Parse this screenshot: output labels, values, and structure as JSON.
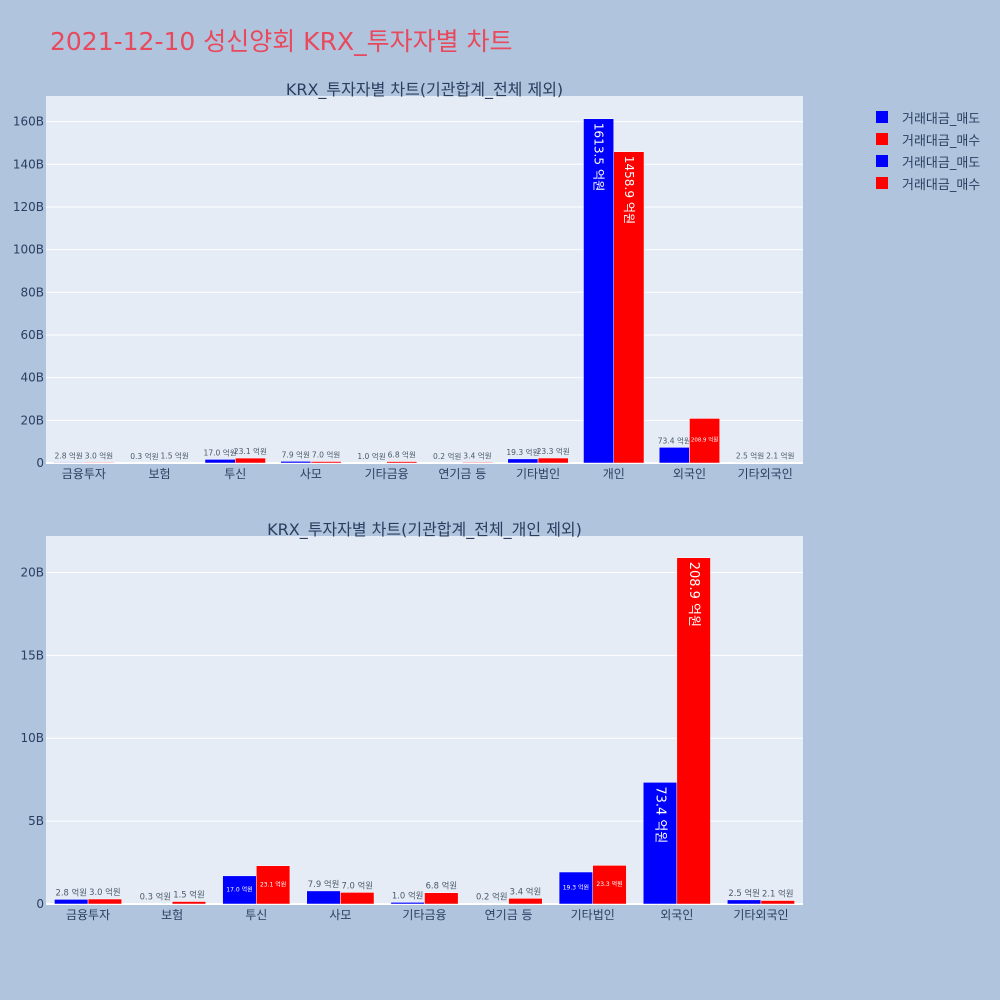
{
  "page": {
    "title": "2021-12-10 성신양회 KRX_투자자별 차트"
  },
  "colors": {
    "sell": "#0000ff",
    "buy": "#ff0000",
    "plot_bg": "#e5ecf6",
    "paper_bg": "#b0c4de"
  },
  "legend": {
    "placement": "right",
    "items": [
      {
        "label": "거래대금_매도",
        "color": "#0000ff"
      },
      {
        "label": "거래대금_매수",
        "color": "#ff0000"
      },
      {
        "label": "거래대금_매도",
        "color": "#0000ff"
      },
      {
        "label": "거래대금_매수",
        "color": "#ff0000"
      }
    ]
  },
  "chart_data": [
    {
      "type": "bar",
      "title": "KRX_투자자별 차트(기관합계_전체 제외)",
      "categories": [
        "금융투자",
        "보험",
        "투신",
        "사모",
        "기타금융",
        "연기금 등",
        "기타법인",
        "개인",
        "외국인",
        "기타외국인"
      ],
      "ylim": [
        0,
        172
      ],
      "yticks": [
        0,
        20,
        40,
        60,
        80,
        100,
        120,
        140,
        160
      ],
      "ytick_labels": [
        "0",
        "20B",
        "40B",
        "60B",
        "80B",
        "100B",
        "120B",
        "140B",
        "160B"
      ],
      "grid": true,
      "series": [
        {
          "name": "거래대금_매도",
          "color": "#0000ff",
          "values": [
            0.28,
            0.03,
            1.7,
            0.79,
            0.1,
            0.02,
            1.93,
            161.35,
            7.34,
            0.25
          ],
          "labels": [
            "2.8 억원",
            "0.3 억원",
            "17.0 억원",
            "7.9 억원",
            "1.0 억원",
            "0.2 억원",
            "19.3 억원",
            "1613.5 억원",
            "73.4 억원",
            "2.5 억원"
          ]
        },
        {
          "name": "거래대금_매수",
          "color": "#ff0000",
          "values": [
            0.3,
            0.15,
            2.31,
            0.7,
            0.68,
            0.34,
            2.33,
            145.89,
            20.89,
            0.21
          ],
          "labels": [
            "3.0 억원",
            "1.5 억원",
            "23.1 억원",
            "7.0 억원",
            "6.8 억원",
            "3.4 억원",
            "23.3 억원",
            "1458.9 억원",
            "208.9 억원",
            "2.1 억원"
          ]
        }
      ]
    },
    {
      "type": "bar",
      "title": "KRX_투자자별 차트(기관합계_전체_개인 제외)",
      "categories": [
        "금융투자",
        "보험",
        "투신",
        "사모",
        "기타금융",
        "연기금 등",
        "기타법인",
        "외국인",
        "기타외국인"
      ],
      "ylim": [
        0,
        22.2
      ],
      "yticks": [
        0,
        5,
        10,
        15,
        20
      ],
      "ytick_labels": [
        "0",
        "5B",
        "10B",
        "15B",
        "20B"
      ],
      "grid": true,
      "series": [
        {
          "name": "거래대금_매도",
          "color": "#0000ff",
          "values": [
            0.28,
            0.03,
            1.7,
            0.79,
            0.1,
            0.02,
            1.93,
            7.34,
            0.25
          ],
          "labels": [
            "2.8 억원",
            "0.3 억원",
            "17.0 억원",
            "7.9 억원",
            "1.0 억원",
            "0.2 억원",
            "19.3 억원",
            "73.4 억원",
            "2.5 억원"
          ]
        },
        {
          "name": "거래대금_매수",
          "color": "#ff0000",
          "values": [
            0.3,
            0.15,
            2.31,
            0.7,
            0.68,
            0.34,
            2.33,
            20.89,
            0.21
          ],
          "labels": [
            "3.0 억원",
            "1.5 억원",
            "23.1 억원",
            "7.0 억원",
            "6.8 억원",
            "3.4 억원",
            "23.3 억원",
            "208.9 억원",
            "2.1 억원"
          ]
        }
      ]
    }
  ]
}
